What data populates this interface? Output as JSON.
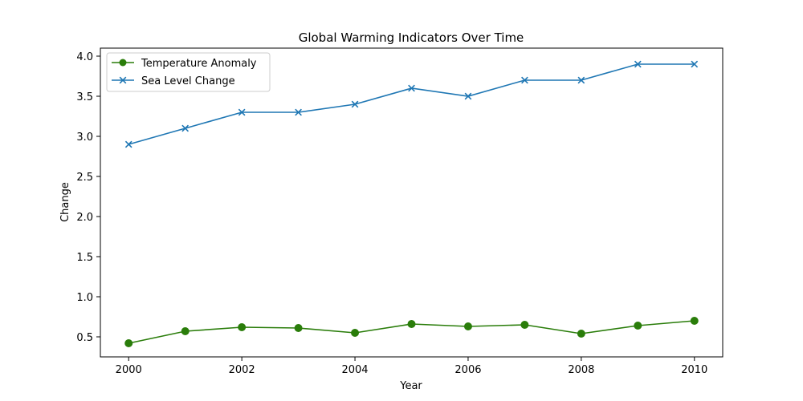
{
  "chart_data": {
    "type": "line",
    "title": "Global Warming Indicators Over Time",
    "xlabel": "Year",
    "ylabel": "Change",
    "x": [
      2000,
      2001,
      2002,
      2003,
      2004,
      2005,
      2006,
      2007,
      2008,
      2009,
      2010
    ],
    "xlim": [
      1999.5,
      2010.5
    ],
    "ylim": [
      0.25,
      4.1
    ],
    "xticks": [
      2000,
      2002,
      2004,
      2006,
      2008,
      2010
    ],
    "yticks": [
      0.5,
      1.0,
      1.5,
      2.0,
      2.5,
      3.0,
      3.5,
      4.0
    ],
    "ytick_labels": [
      "0.5",
      "1.0",
      "1.5",
      "2.0",
      "2.5",
      "3.0",
      "3.5",
      "4.0"
    ],
    "grid": false,
    "legend_position": "top-left",
    "series": [
      {
        "name": "Temperature Anomaly",
        "color": "#2a7d0a",
        "marker": "circle",
        "values": [
          0.42,
          0.57,
          0.62,
          0.61,
          0.55,
          0.66,
          0.63,
          0.65,
          0.54,
          0.64,
          0.7
        ]
      },
      {
        "name": "Sea Level Change",
        "color": "#1f77b4",
        "marker": "x",
        "values": [
          2.9,
          3.1,
          3.3,
          3.3,
          3.4,
          3.6,
          3.5,
          3.7,
          3.7,
          3.9,
          3.9
        ]
      }
    ]
  }
}
